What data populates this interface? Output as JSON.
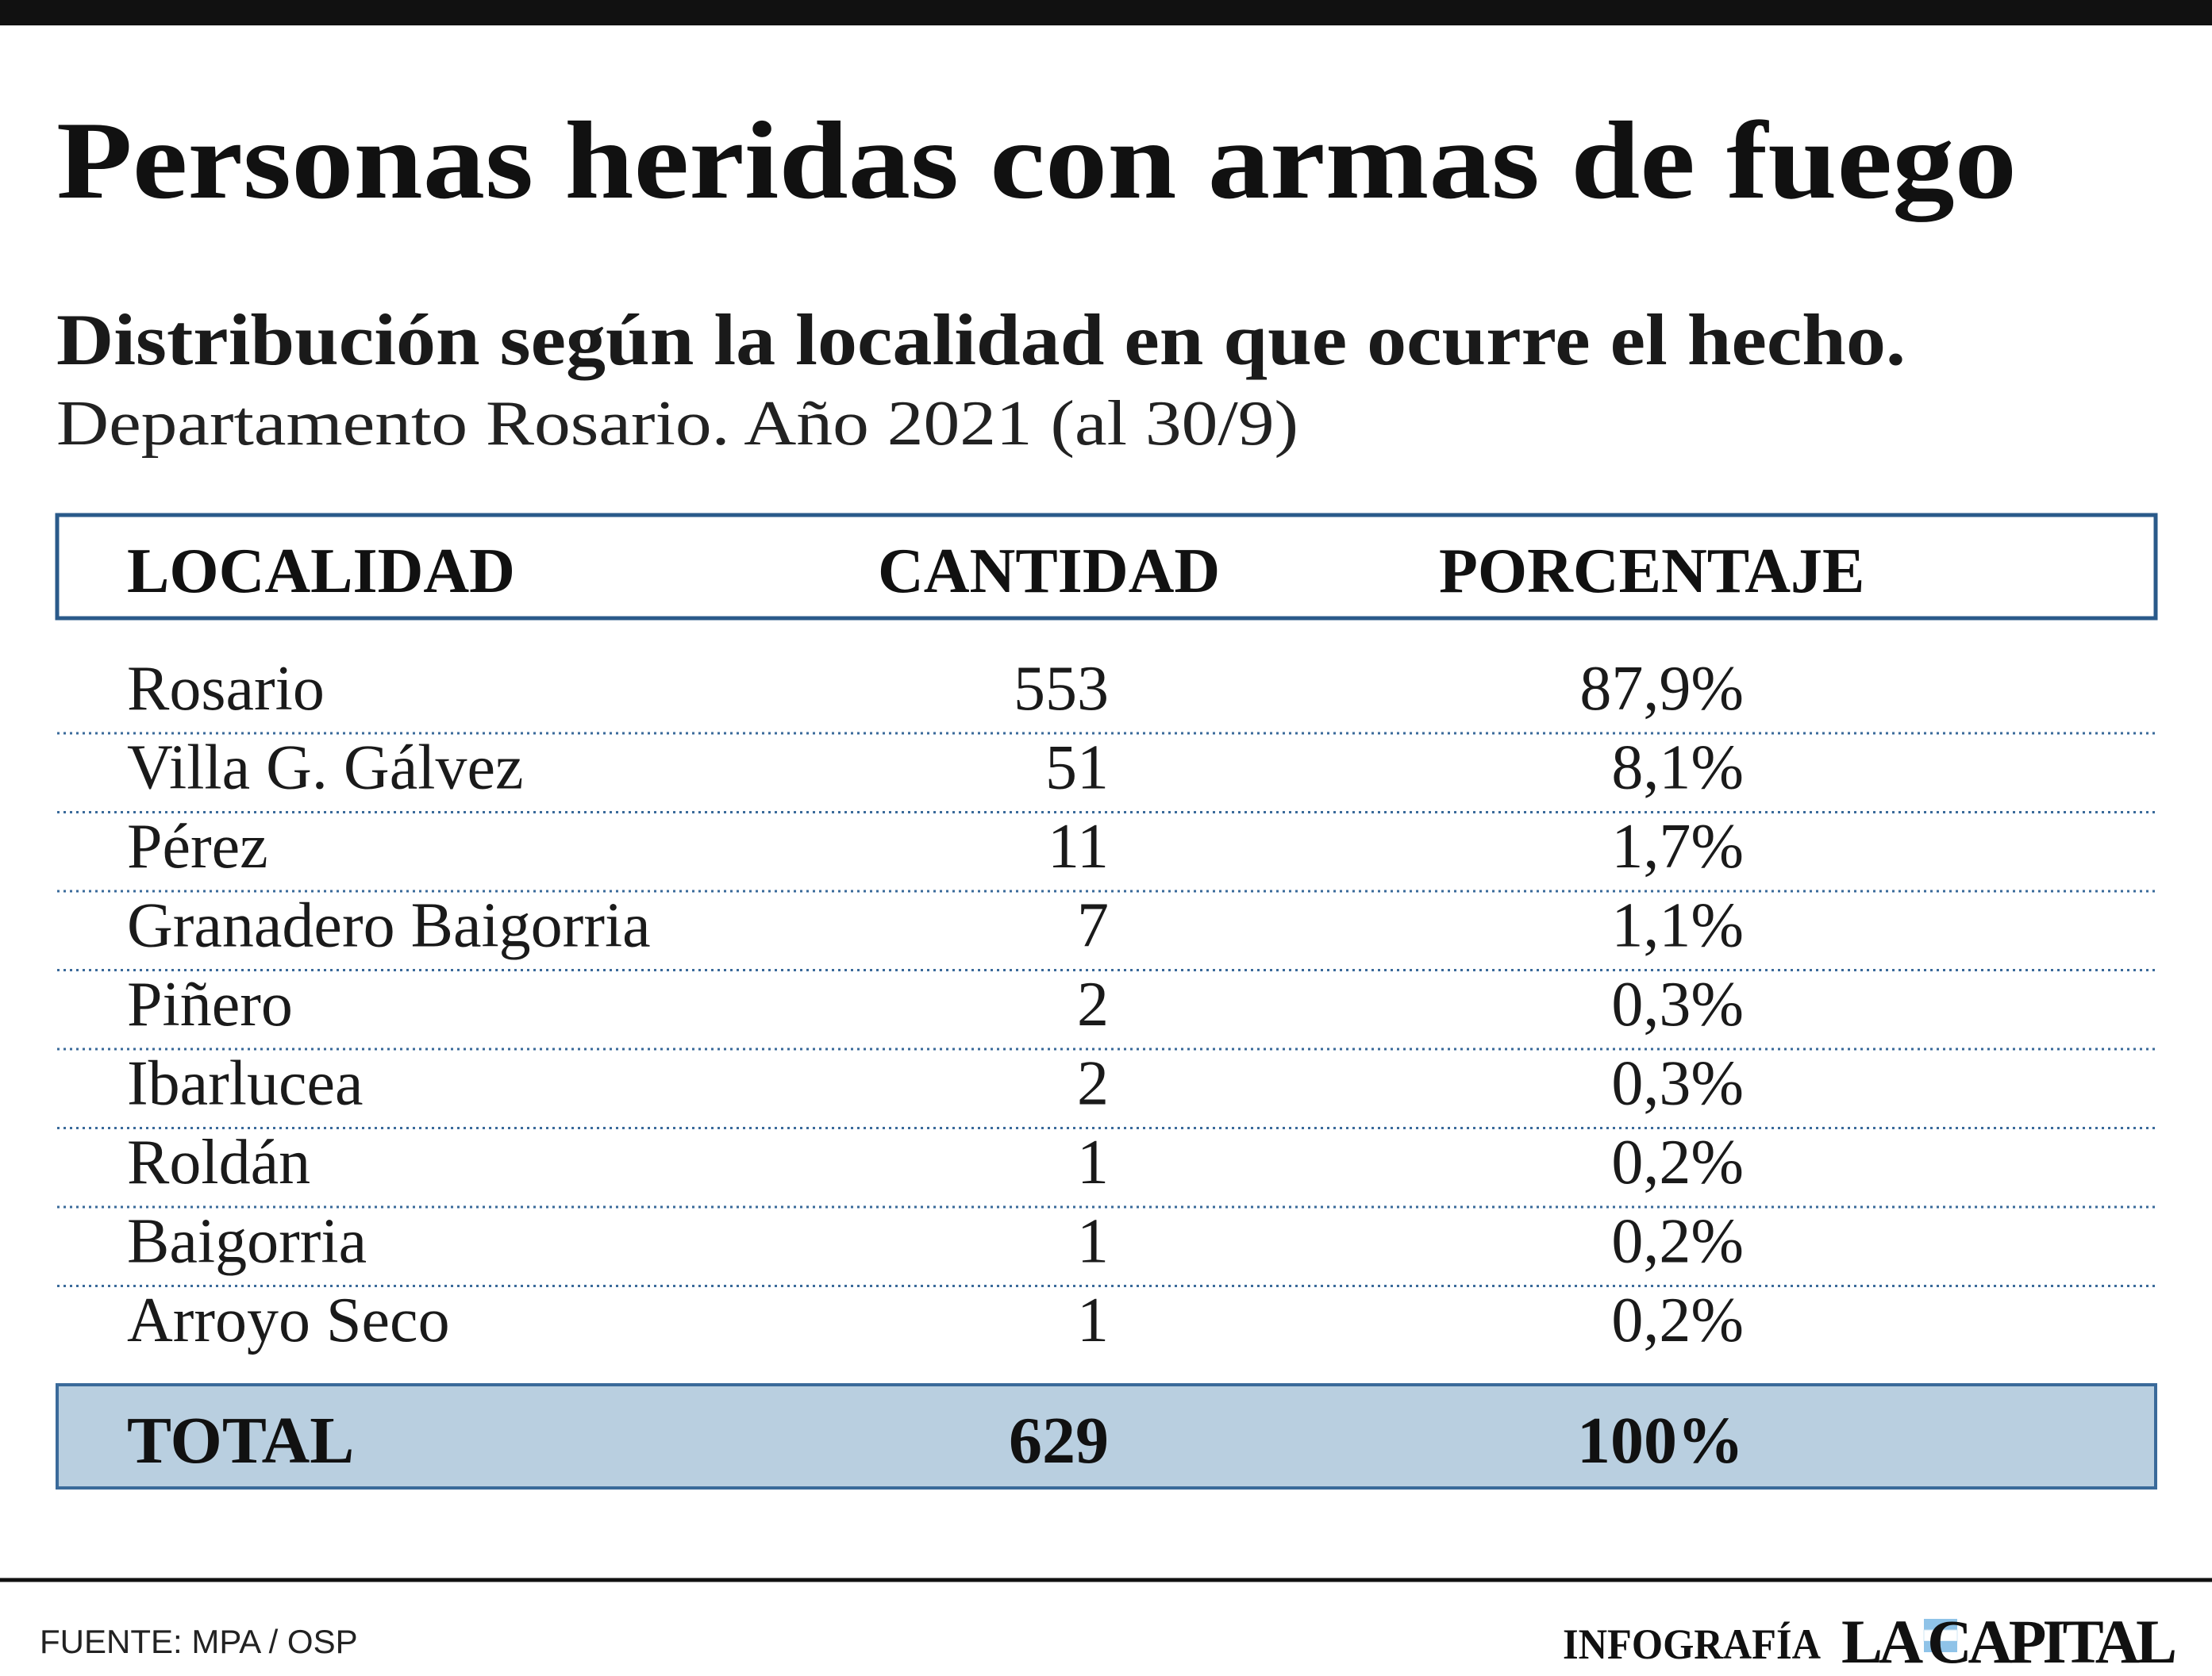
{
  "header": {
    "title": "Personas heridas con armas de fuego",
    "subtitle": "Distribución según la localidad en que ocurre el hecho.",
    "note": "Departamento Rosario. Año 2021 (al 30/9)"
  },
  "table": {
    "columns": [
      "LOCALIDAD",
      "CANTIDAD",
      "PORCENTAJE"
    ],
    "rows": [
      [
        "Rosario",
        "553",
        "87,9%"
      ],
      [
        "Villa G. Gálvez",
        "51",
        "8,1%"
      ],
      [
        "Pérez",
        "11",
        "1,7%"
      ],
      [
        "Granadero Baigorria",
        "7",
        "1,1%"
      ],
      [
        "Piñero",
        "2",
        "0,3%"
      ],
      [
        "Ibarlucea",
        "2",
        "0,3%"
      ],
      [
        "Roldán",
        "1",
        "0,2%"
      ],
      [
        "Baigorria",
        "1",
        "0,2%"
      ],
      [
        "Arroyo Seco",
        "1",
        "0,2%"
      ]
    ],
    "total": [
      "TOTAL",
      "629",
      "100%"
    ]
  },
  "footer": {
    "source": "FUENTE: MPA / OSP",
    "credit": "INFOGRAFÍA",
    "brand": "LA CAPITAL"
  }
}
